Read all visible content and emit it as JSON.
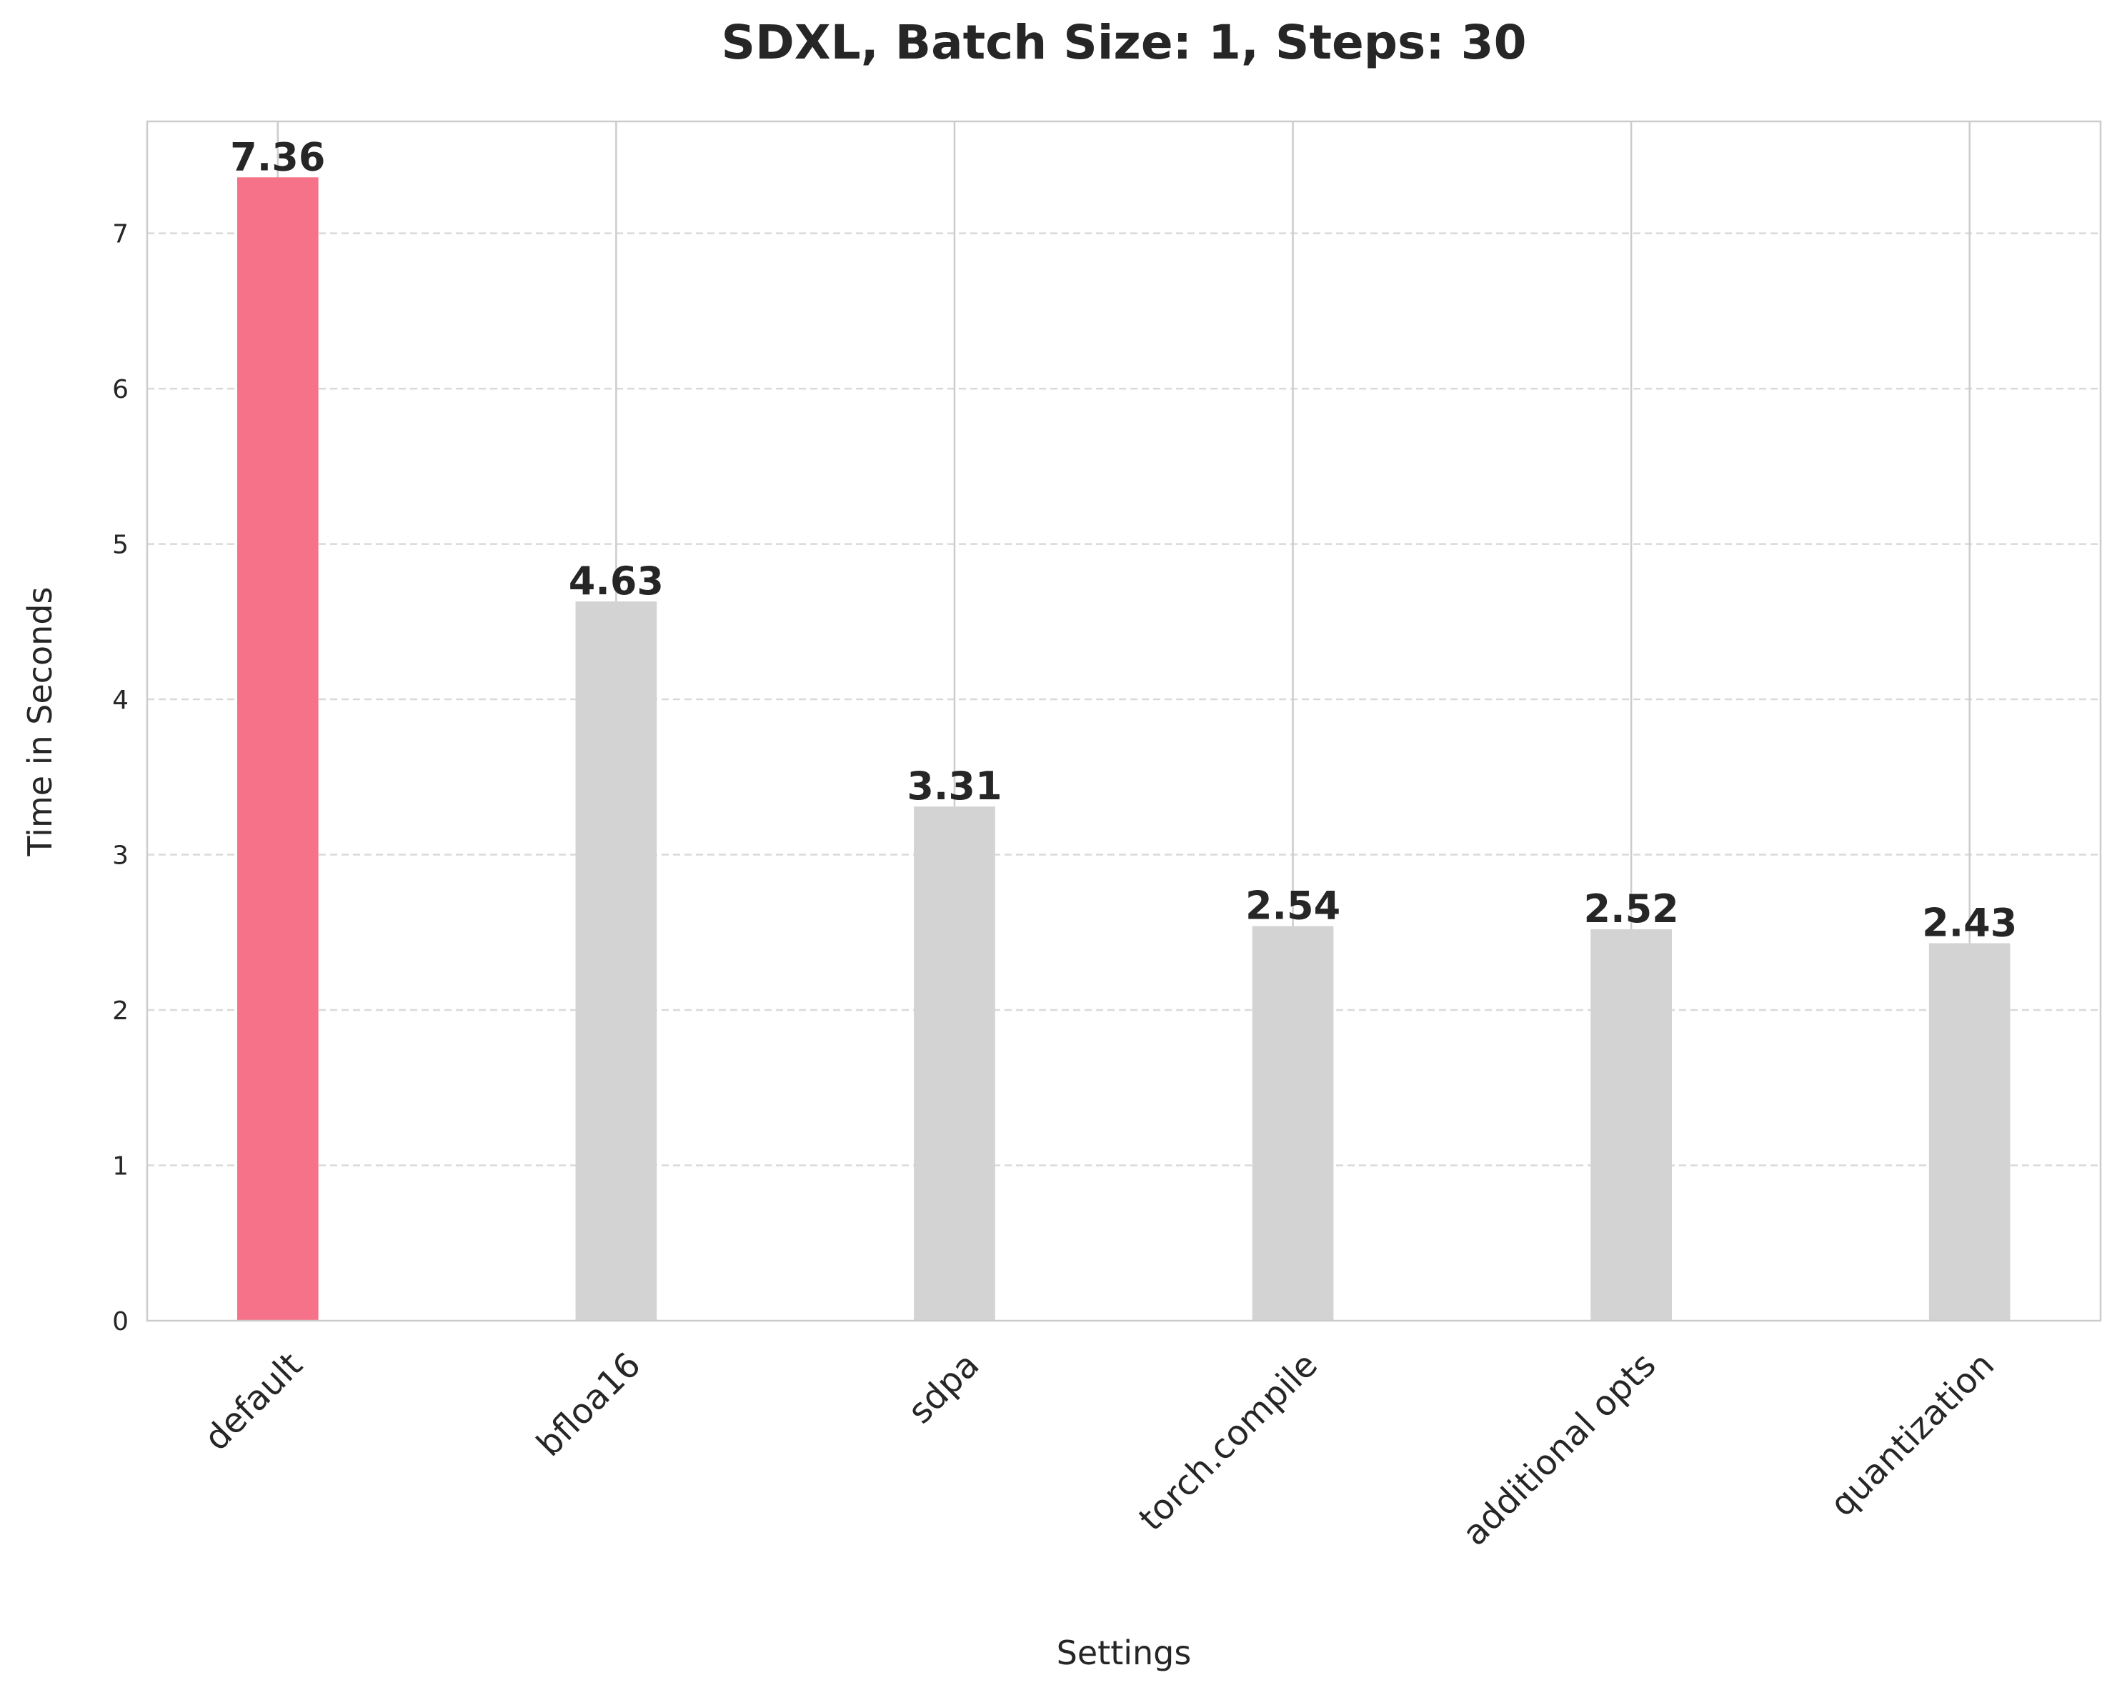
{
  "chart_data": {
    "type": "bar",
    "title": "SDXL, Batch Size: 1, Steps: 30",
    "xlabel": "Settings",
    "ylabel": "Time in Seconds",
    "categories": [
      "default",
      "bfloa16",
      "sdpa",
      "torch.compile",
      "additional opts",
      "quantization"
    ],
    "values": [
      7.36,
      4.63,
      3.31,
      2.54,
      2.52,
      2.43
    ],
    "value_labels": [
      "7.36",
      "4.63",
      "3.31",
      "2.54",
      "2.52",
      "2.43"
    ],
    "colors": [
      "#f67288",
      "#d3d3d3",
      "#d3d3d3",
      "#d3d3d3",
      "#d3d3d3",
      "#d3d3d3"
    ],
    "ylim": [
      0,
      7.72
    ],
    "yticks": [
      0,
      1,
      2,
      3,
      4,
      5,
      6,
      7
    ],
    "grid": true
  }
}
